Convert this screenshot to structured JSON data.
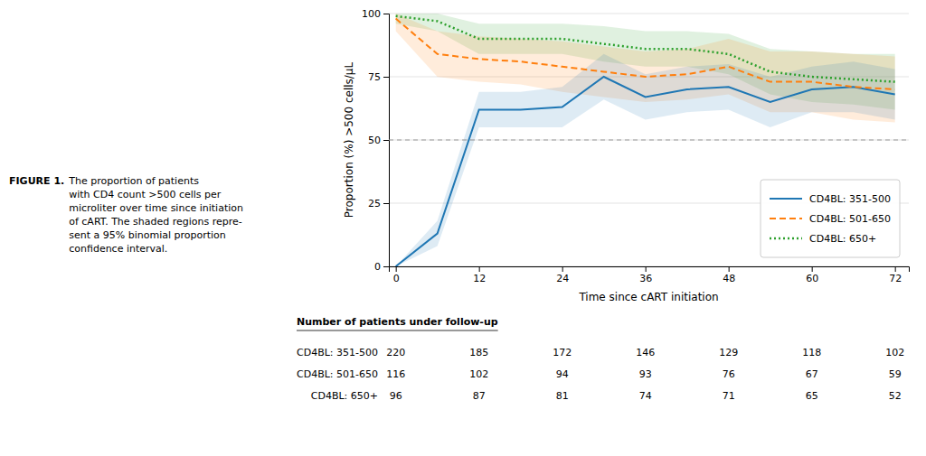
{
  "chart_data": {
    "type": "line",
    "xlabel": "Time since cART initiation",
    "ylabel": "Proportion (%) >500 cells/μL",
    "x": [
      0,
      6,
      12,
      18,
      24,
      30,
      36,
      42,
      48,
      54,
      60,
      66,
      72
    ],
    "xlim": [
      -1,
      74
    ],
    "xticks": [
      0,
      12,
      24,
      36,
      48,
      60,
      72
    ],
    "ylim": [
      0,
      100
    ],
    "yticks": [
      0,
      25,
      50,
      75,
      100
    ],
    "grid": true,
    "legend": "lower right",
    "ref_line_y": 50,
    "series": [
      {
        "name": "CD4BL: 351-500",
        "line_style": "solid",
        "values": [
          0,
          13,
          62,
          62,
          63,
          75,
          67,
          70,
          71,
          65,
          70,
          71,
          68
        ],
        "ci_lo": [
          0,
          8,
          55,
          55,
          55,
          66,
          58,
          61,
          62,
          55,
          61,
          61,
          58
        ],
        "ci_hi": [
          0,
          18,
          69,
          69,
          71,
          84,
          76,
          79,
          80,
          75,
          79,
          81,
          78
        ]
      },
      {
        "name": "CD4BL: 501-650",
        "line_style": "dashed",
        "values": [
          98,
          84,
          82,
          81,
          79,
          77,
          75,
          76,
          79,
          73,
          73,
          71,
          70
        ],
        "ci_lo": [
          93,
          75,
          73,
          72,
          69,
          67,
          65,
          66,
          68,
          61,
          61,
          58,
          57
        ],
        "ci_hi": [
          100,
          93,
          91,
          90,
          89,
          87,
          85,
          86,
          90,
          85,
          85,
          84,
          83
        ]
      },
      {
        "name": "CD4BL: 650+",
        "line_style": "dotted",
        "values": [
          99,
          97,
          90,
          90,
          90,
          88,
          86,
          86,
          84,
          77,
          75,
          74,
          73
        ],
        "ci_lo": [
          96,
          93,
          84,
          84,
          84,
          81,
          79,
          79,
          76,
          68,
          65,
          64,
          62
        ],
        "ci_hi": [
          100,
          100,
          96,
          96,
          96,
          95,
          93,
          93,
          92,
          86,
          85,
          84,
          84
        ]
      }
    ],
    "table": {
      "header": "Number of patients under follow-up",
      "row_labels": [
        "CD4BL: 351-500",
        "CD4BL: 501-650",
        "CD4BL: 650+"
      ],
      "columns": [
        0,
        12,
        24,
        36,
        48,
        60,
        72
      ],
      "rows": [
        [
          220,
          185,
          172,
          146,
          129,
          118,
          102
        ],
        [
          116,
          102,
          94,
          93,
          76,
          67,
          59
        ],
        [
          96,
          87,
          81,
          74,
          71,
          65,
          52
        ]
      ]
    },
    "figure_label": "FIGURE 1.",
    "caption": [
      "The proportion of patients",
      "with CD4 count >500 cells per",
      "microliter over time since initiation",
      "of cART. The shaded regions repre-",
      "sent a 95% binomial proportion",
      "confidence interval."
    ]
  }
}
